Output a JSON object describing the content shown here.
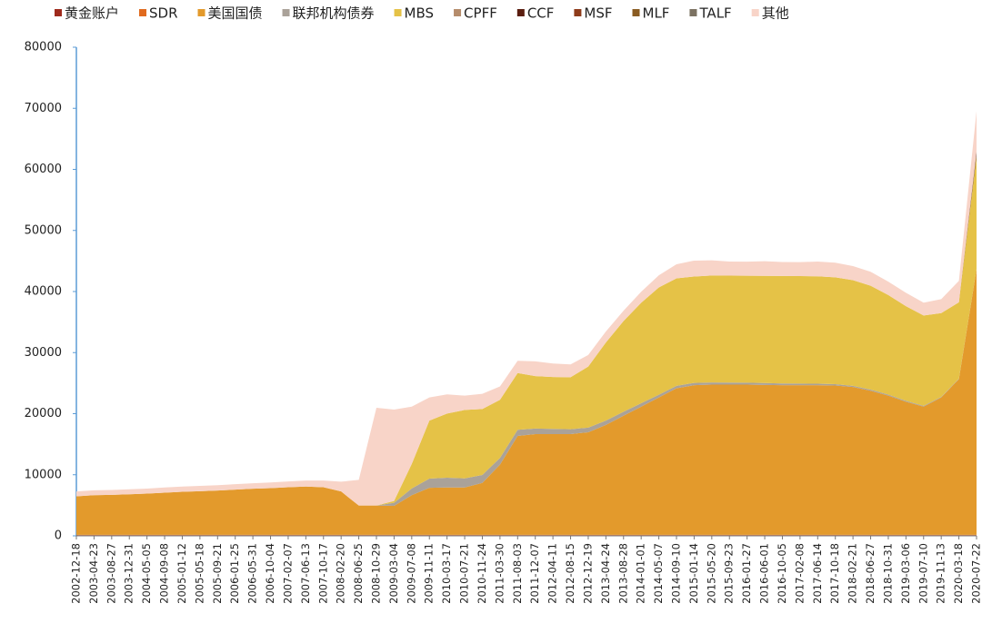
{
  "chart_data": {
    "type": "stacked_area",
    "categories": [
      "2002-12-18",
      "2003-04-23",
      "2003-08-27",
      "2003-12-31",
      "2004-05-05",
      "2004-09-08",
      "2005-01-12",
      "2005-05-18",
      "2005-09-21",
      "2006-01-25",
      "2006-05-31",
      "2006-10-04",
      "2007-02-07",
      "2007-06-13",
      "2007-10-17",
      "2008-02-20",
      "2008-06-25",
      "2008-10-29",
      "2009-03-04",
      "2009-07-08",
      "2009-11-11",
      "2010-03-17",
      "2010-07-21",
      "2010-11-24",
      "2011-03-30",
      "2011-08-03",
      "2011-12-07",
      "2012-04-11",
      "2012-08-15",
      "2012-12-19",
      "2013-04-24",
      "2013-08-28",
      "2014-01-01",
      "2014-05-07",
      "2014-09-10",
      "2015-01-14",
      "2015-05-20",
      "2015-09-23",
      "2016-01-27",
      "2016-06-01",
      "2016-10-05",
      "2017-02-08",
      "2017-06-14",
      "2017-10-18",
      "2018-02-21",
      "2018-06-27",
      "2018-10-31",
      "2019-03-06",
      "2019-07-10",
      "2019-11-13",
      "2020-03-18",
      "2020-07-22"
    ],
    "series": [
      {
        "name": "黄金账户",
        "color": "#9e2a1c",
        "values": [
          110,
          110,
          110,
          110,
          110,
          110,
          110,
          110,
          110,
          110,
          110,
          110,
          110,
          110,
          110,
          110,
          110,
          110,
          110,
          110,
          110,
          110,
          110,
          110,
          110,
          110,
          110,
          110,
          110,
          110,
          110,
          110,
          110,
          110,
          110,
          110,
          110,
          110,
          110,
          110,
          110,
          110,
          110,
          110,
          110,
          110,
          110,
          110,
          110,
          110,
          110,
          110
        ]
      },
      {
        "name": "SDR",
        "color": "#e06a1e",
        "values": [
          50,
          50,
          50,
          50,
          50,
          50,
          50,
          50,
          50,
          50,
          50,
          50,
          50,
          50,
          50,
          50,
          50,
          50,
          50,
          50,
          50,
          50,
          50,
          50,
          50,
          50,
          50,
          50,
          50,
          50,
          50,
          50,
          50,
          50,
          50,
          50,
          50,
          50,
          50,
          50,
          50,
          50,
          50,
          50,
          50,
          50,
          50,
          50,
          50,
          50,
          50,
          50
        ]
      },
      {
        "name": "美国国债",
        "color": "#e39a2c",
        "values": [
          6300,
          6500,
          6550,
          6650,
          6750,
          6900,
          7050,
          7150,
          7250,
          7400,
          7550,
          7650,
          7800,
          7900,
          7800,
          7100,
          4800,
          4800,
          4750,
          6500,
          7700,
          7750,
          7750,
          8500,
          11500,
          16200,
          16500,
          16500,
          16500,
          16800,
          18000,
          19500,
          21000,
          22500,
          24000,
          24500,
          24600,
          24600,
          24600,
          24550,
          24500,
          24500,
          24500,
          24450,
          24200,
          23600,
          22800,
          21800,
          21000,
          22500,
          25500,
          43500
        ]
      },
      {
        "name": "联邦机构债券",
        "color": "#aaa299",
        "values": [
          0,
          0,
          0,
          0,
          0,
          0,
          0,
          0,
          0,
          0,
          0,
          0,
          0,
          0,
          0,
          0,
          0,
          0,
          500,
          1100,
          1500,
          1600,
          1500,
          1300,
          1100,
          1000,
          900,
          850,
          800,
          750,
          700,
          650,
          550,
          450,
          400,
          380,
          360,
          340,
          320,
          300,
          280,
          260,
          240,
          220,
          200,
          180,
          160,
          140,
          120,
          100,
          80,
          20
        ]
      },
      {
        "name": "MBS",
        "color": "#e5c247",
        "values": [
          0,
          0,
          0,
          0,
          0,
          0,
          0,
          0,
          0,
          0,
          0,
          0,
          0,
          0,
          0,
          0,
          0,
          0,
          300,
          4000,
          9500,
          10500,
          11200,
          10800,
          9500,
          9300,
          8600,
          8500,
          8500,
          10000,
          12800,
          14850,
          16450,
          17550,
          17600,
          17420,
          17500,
          17500,
          17500,
          17550,
          17600,
          17600,
          17600,
          17500,
          17300,
          17000,
          16300,
          15500,
          14800,
          13700,
          12500,
          18500
        ]
      },
      {
        "name": "CPFF",
        "color": "#b58c6b",
        "values": [
          0,
          0,
          0,
          0,
          0,
          0,
          0,
          0,
          0,
          0,
          0,
          0,
          0,
          0,
          0,
          0,
          0,
          0,
          0,
          0,
          0,
          0,
          0,
          0,
          0,
          0,
          0,
          0,
          0,
          0,
          0,
          0,
          0,
          0,
          0,
          0,
          0,
          0,
          0,
          0,
          0,
          0,
          0,
          0,
          0,
          0,
          0,
          0,
          0,
          0,
          0,
          100
        ]
      },
      {
        "name": "CCF",
        "color": "#5a1d0f",
        "values": [
          0,
          0,
          0,
          0,
          0,
          0,
          0,
          0,
          0,
          0,
          0,
          0,
          0,
          0,
          0,
          0,
          0,
          0,
          0,
          0,
          0,
          0,
          0,
          0,
          0,
          0,
          0,
          0,
          0,
          0,
          0,
          0,
          0,
          0,
          0,
          0,
          0,
          0,
          0,
          0,
          0,
          0,
          0,
          0,
          0,
          0,
          0,
          0,
          0,
          0,
          0,
          400
        ]
      },
      {
        "name": "MSF",
        "color": "#8e3b1a",
        "values": [
          0,
          0,
          0,
          0,
          0,
          0,
          0,
          0,
          0,
          0,
          0,
          0,
          0,
          0,
          0,
          0,
          0,
          0,
          0,
          0,
          0,
          0,
          0,
          0,
          0,
          0,
          0,
          0,
          0,
          0,
          0,
          0,
          0,
          0,
          0,
          0,
          0,
          0,
          0,
          0,
          0,
          0,
          0,
          0,
          0,
          0,
          0,
          0,
          0,
          0,
          0,
          100
        ]
      },
      {
        "name": "MLF",
        "color": "#8a5c22",
        "values": [
          0,
          0,
          0,
          0,
          0,
          0,
          0,
          0,
          0,
          0,
          0,
          0,
          0,
          0,
          0,
          0,
          0,
          0,
          0,
          0,
          0,
          0,
          0,
          0,
          0,
          0,
          0,
          0,
          0,
          0,
          0,
          0,
          0,
          0,
          0,
          0,
          0,
          0,
          0,
          0,
          0,
          0,
          0,
          0,
          0,
          0,
          0,
          0,
          0,
          0,
          0,
          170
        ]
      },
      {
        "name": "TALF",
        "color": "#7c7262",
        "values": [
          0,
          0,
          0,
          0,
          0,
          0,
          0,
          0,
          0,
          0,
          0,
          0,
          0,
          0,
          0,
          0,
          0,
          0,
          0,
          0,
          0,
          0,
          0,
          0,
          0,
          0,
          0,
          0,
          0,
          0,
          0,
          0,
          0,
          0,
          0,
          0,
          0,
          0,
          0,
          0,
          0,
          0,
          0,
          0,
          0,
          0,
          0,
          0,
          0,
          0,
          0,
          100
        ]
      },
      {
        "name": "其他",
        "color": "#f8d4c8",
        "values": [
          800,
          800,
          800,
          820,
          820,
          850,
          850,
          870,
          880,
          900,
          900,
          920,
          950,
          1000,
          1100,
          1600,
          4200,
          16000,
          14950,
          9400,
          3800,
          3150,
          2350,
          2500,
          2200,
          2000,
          2400,
          2200,
          2100,
          1900,
          1800,
          1700,
          1800,
          2000,
          2300,
          2600,
          2500,
          2300,
          2300,
          2400,
          2300,
          2300,
          2400,
          2400,
          2300,
          2300,
          2200,
          2200,
          2100,
          2300,
          3500,
          6500
        ]
      }
    ],
    "ylim": [
      0,
      80000
    ],
    "yticks": [
      0,
      10000,
      20000,
      30000,
      40000,
      50000,
      60000,
      70000,
      80000
    ]
  }
}
